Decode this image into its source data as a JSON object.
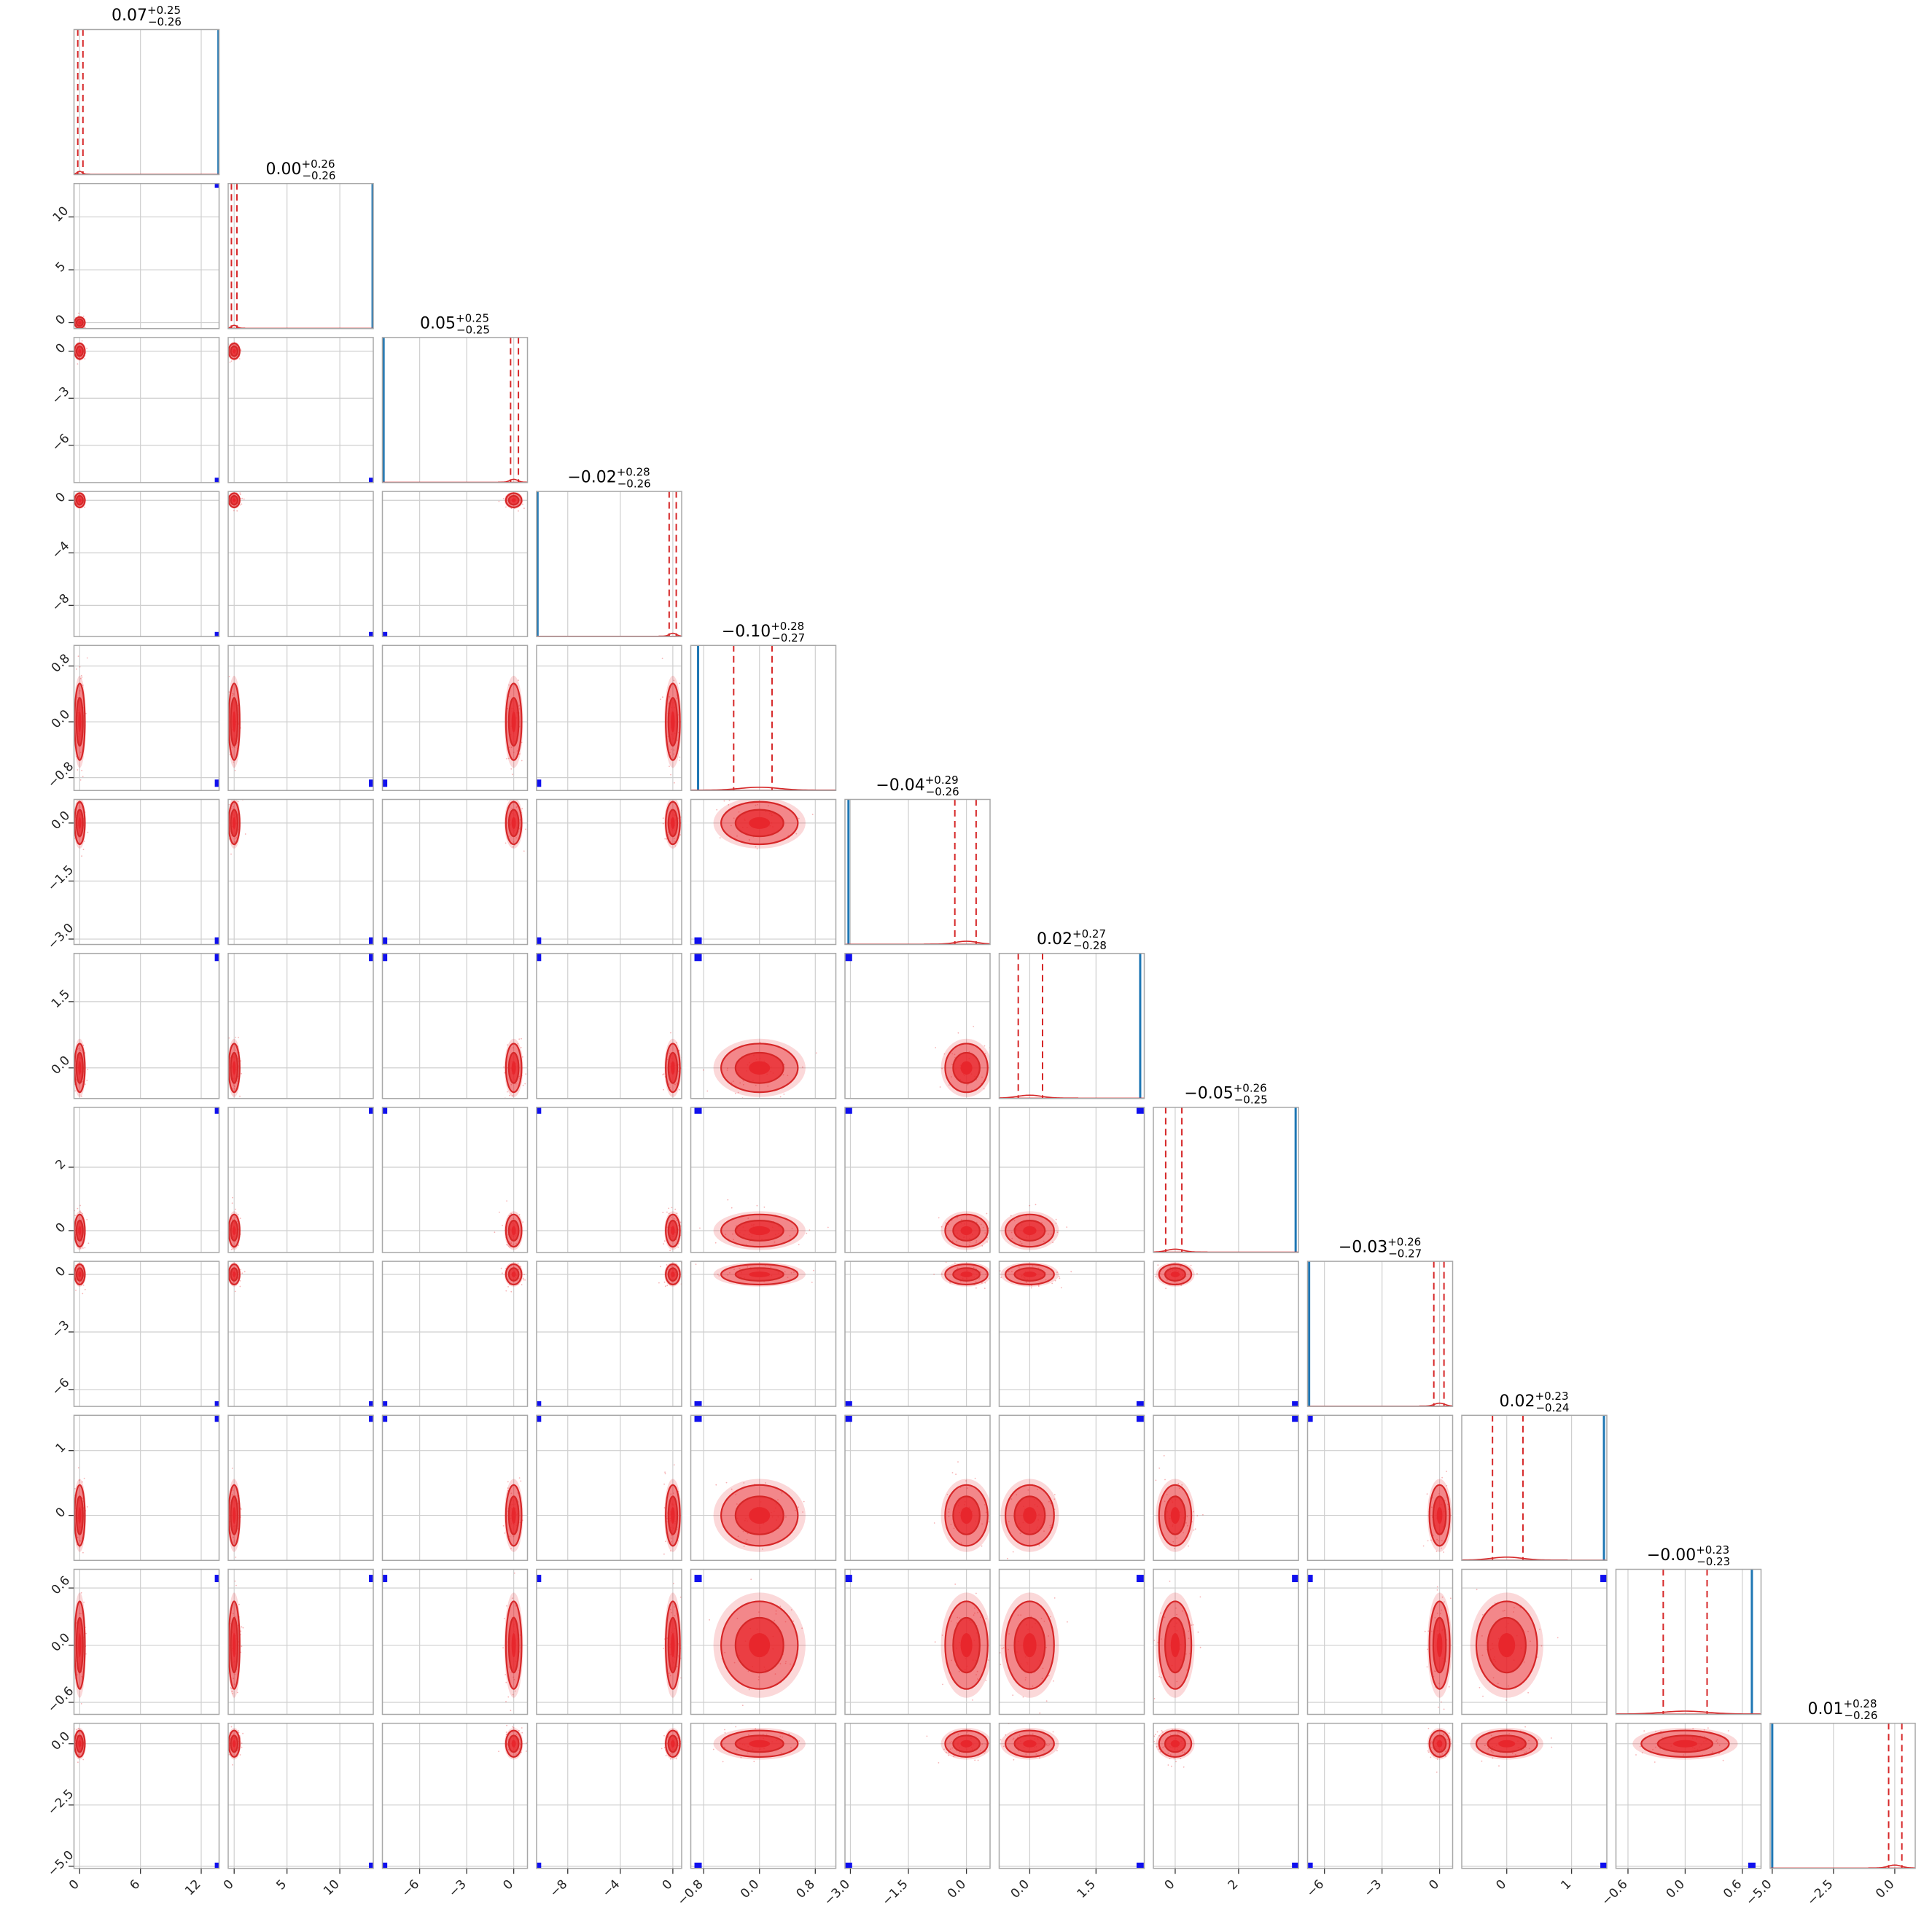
{
  "chart_data": {
    "type": "corner",
    "n_params": 12,
    "grid": true,
    "colors": {
      "posterior": "#d62728",
      "posterior_fill": "#e8252b",
      "marker": "#1010ee",
      "hist_truth": "#1f77b4",
      "grid": "#cfcfcf",
      "frame": "#a8a8a8"
    },
    "titles": [
      {
        "median": "0.07",
        "plus": "+0.25",
        "minus": "−0.26"
      },
      {
        "median": "0.00",
        "plus": "+0.26",
        "minus": "−0.26"
      },
      {
        "median": "0.05",
        "plus": "+0.25",
        "minus": "−0.25"
      },
      {
        "median": "−0.02",
        "plus": "+0.28",
        "minus": "−0.26"
      },
      {
        "median": "−0.10",
        "plus": "+0.28",
        "minus": "−0.27"
      },
      {
        "median": "−0.04",
        "plus": "+0.29",
        "minus": "−0.26"
      },
      {
        "median": "0.02",
        "plus": "+0.27",
        "minus": "−0.28"
      },
      {
        "median": "−0.05",
        "plus": "+0.26",
        "minus": "−0.25"
      },
      {
        "median": "−0.03",
        "plus": "+0.26",
        "minus": "−0.27"
      },
      {
        "median": "0.02",
        "plus": "+0.23",
        "minus": "−0.24"
      },
      {
        "median": "−0.00",
        "plus": "+0.23",
        "minus": "−0.23"
      },
      {
        "median": "0.01",
        "plus": "+0.28",
        "minus": "−0.26"
      }
    ],
    "quantiles": [
      [
        -0.19,
        0.32
      ],
      [
        -0.26,
        0.26
      ],
      [
        -0.2,
        0.3
      ],
      [
        -0.28,
        0.26
      ],
      [
        -0.37,
        0.18
      ],
      [
        -0.3,
        0.25
      ],
      [
        -0.26,
        0.29
      ],
      [
        -0.3,
        0.21
      ],
      [
        -0.3,
        0.23
      ],
      [
        -0.22,
        0.25
      ],
      [
        -0.23,
        0.23
      ],
      [
        -0.25,
        0.29
      ]
    ],
    "ranges": [
      [
        -0.6,
        13.8
      ],
      [
        -0.6,
        13.2
      ],
      [
        -8.4,
        0.9
      ],
      [
        -10.4,
        0.7
      ],
      [
        -0.99,
        1.1
      ],
      [
        -3.15,
        0.62
      ],
      [
        -0.7,
        2.6
      ],
      [
        -0.7,
        3.9
      ],
      [
        -6.9,
        0.7
      ],
      [
        -0.7,
        1.55
      ],
      [
        -0.73,
        0.8
      ],
      [
        -5.1,
        0.85
      ]
    ],
    "truth_markers": [
      13.7,
      13.1,
      -8.3,
      -10.3,
      -0.88,
      -3.05,
      2.5,
      3.8,
      -6.8,
      1.5,
      0.7,
      -5.0
    ],
    "ticks": [
      [
        0,
        6,
        12
      ],
      [
        0,
        5,
        10
      ],
      [
        -6,
        -3,
        0
      ],
      [
        -8,
        -4,
        0
      ],
      [
        -0.8,
        0.0,
        0.8
      ],
      [
        -3.0,
        -1.5,
        0.0
      ],
      [
        0.0,
        1.5
      ],
      [
        0,
        2
      ],
      [
        -6,
        -3,
        0
      ],
      [
        0,
        1
      ],
      [
        -0.6,
        0.0,
        0.6
      ],
      [
        -5.0,
        -2.5,
        0.0
      ]
    ],
    "tick_labels": [
      [
        "0",
        "6",
        "12"
      ],
      [
        "0",
        "5",
        "10"
      ],
      [
        "−6",
        "−3",
        "0"
      ],
      [
        "−8",
        "−4",
        "0"
      ],
      [
        "−0.8",
        "0.0",
        "0.8"
      ],
      [
        "−3.0",
        "−1.5",
        "0.0"
      ],
      [
        "0.0",
        "1.5"
      ],
      [
        "0",
        "2"
      ],
      [
        "−6",
        "−3",
        "0"
      ],
      [
        "0",
        "1"
      ],
      [
        "−0.6",
        "0.0",
        "0.6"
      ],
      [
        "−5.0",
        "−2.5",
        "0.0"
      ]
    ]
  }
}
